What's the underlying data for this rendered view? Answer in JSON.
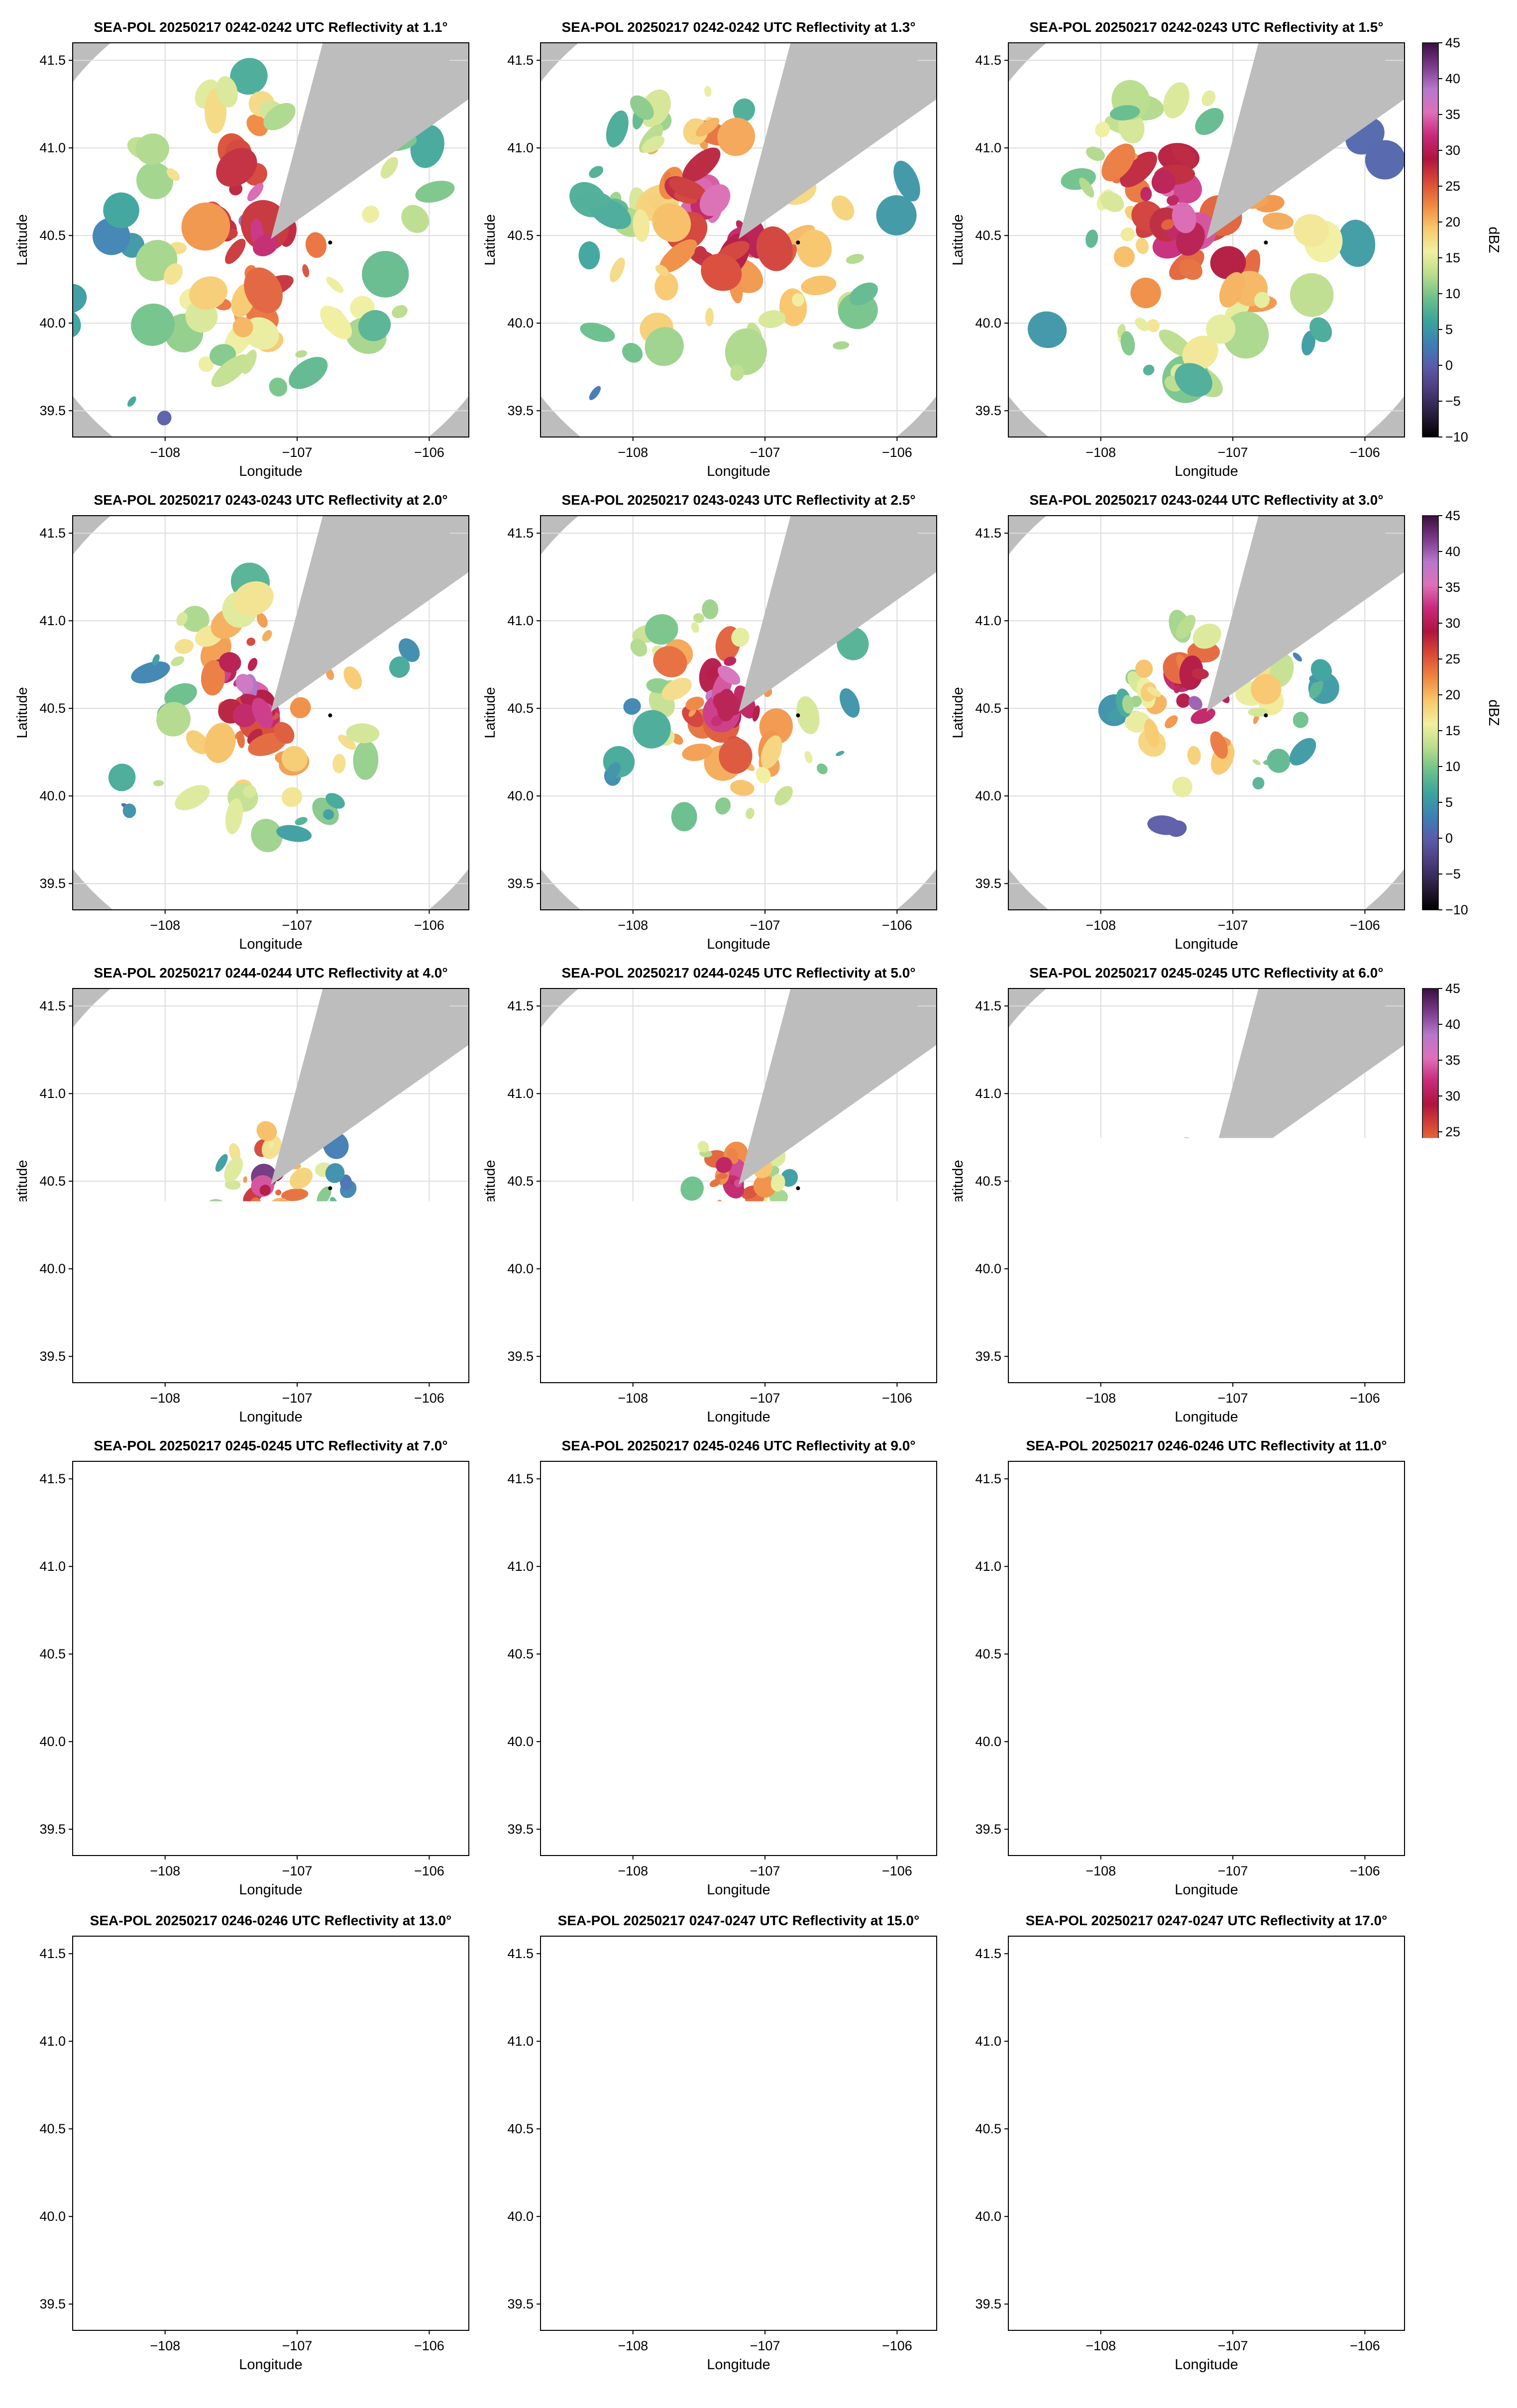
{
  "figure": {
    "colors": {
      "background_outside_range": "#bdbdbd",
      "inside_range": "#ffffff",
      "grid": "#dcdcdc",
      "axes_frame": "#000000"
    }
  },
  "chart_data": [
    {
      "type": "heatmap",
      "title": "SEA-POL 20250217 0242-0242 UTC Reflectivity at 1.1°",
      "xlabel": "Longitude",
      "ylabel": "Latitude",
      "xlim": [
        -108.7,
        -105.7
      ],
      "ylim": [
        39.35,
        41.6
      ],
      "x_ticks": [
        "−108",
        "−107",
        "−106"
      ],
      "y_ticks": [
        "39.5",
        "40.0",
        "40.5",
        "41.0",
        "41.5"
      ],
      "elevation_deg": 1.1,
      "echo_extent_deg": 1.25,
      "grid": true
    },
    {
      "type": "heatmap",
      "title": "SEA-POL 20250217 0242-0242 UTC Reflectivity at 1.3°",
      "xlabel": "Longitude",
      "ylabel": "Latitude",
      "xlim": [
        -108.7,
        -105.7
      ],
      "ylim": [
        39.35,
        41.6
      ],
      "x_ticks": [
        "−108",
        "−107",
        "−106"
      ],
      "y_ticks": [
        "39.5",
        "40.0",
        "40.5",
        "41.0",
        "41.5"
      ],
      "elevation_deg": 1.3,
      "echo_extent_deg": 1.2,
      "grid": true
    },
    {
      "type": "heatmap",
      "title": "SEA-POL 20250217 0242-0243 UTC Reflectivity at 1.5°",
      "xlabel": "Longitude",
      "ylabel": "Latitude",
      "xlim": [
        -108.7,
        -105.7
      ],
      "ylim": [
        39.35,
        41.6
      ],
      "x_ticks": [
        "−108",
        "−107",
        "−106"
      ],
      "y_ticks": [
        "39.5",
        "40.0",
        "40.5",
        "41.0",
        "41.5"
      ],
      "elevation_deg": 1.5,
      "echo_extent_deg": 1.2,
      "grid": true,
      "colorbar": true
    },
    {
      "type": "heatmap",
      "title": "SEA-POL 20250217 0243-0243 UTC Reflectivity at 2.0°",
      "xlabel": "Longitude",
      "ylabel": "Latitude",
      "xlim": [
        -108.7,
        -105.7
      ],
      "ylim": [
        39.35,
        41.6
      ],
      "x_ticks": [
        "−108",
        "−107",
        "−106"
      ],
      "y_ticks": [
        "39.5",
        "40.0",
        "40.5",
        "41.0",
        "41.5"
      ],
      "elevation_deg": 2.0,
      "echo_extent_deg": 1.0,
      "grid": true
    },
    {
      "type": "heatmap",
      "title": "SEA-POL 20250217 0243-0243 UTC Reflectivity at 2.5°",
      "xlabel": "Longitude",
      "ylabel": "Latitude",
      "xlim": [
        -108.7,
        -105.7
      ],
      "ylim": [
        39.35,
        41.6
      ],
      "x_ticks": [
        "−108",
        "−107",
        "−106"
      ],
      "y_ticks": [
        "39.5",
        "40.0",
        "40.5",
        "41.0",
        "41.5"
      ],
      "elevation_deg": 2.5,
      "echo_extent_deg": 0.9,
      "grid": true
    },
    {
      "type": "heatmap",
      "title": "SEA-POL 20250217 0243-0244 UTC Reflectivity at 3.0°",
      "xlabel": "Longitude",
      "ylabel": "Latitude",
      "xlim": [
        -108.7,
        -105.7
      ],
      "ylim": [
        39.35,
        41.6
      ],
      "x_ticks": [
        "−108",
        "−107",
        "−106"
      ],
      "y_ticks": [
        "39.5",
        "40.0",
        "40.5",
        "41.0",
        "41.5"
      ],
      "elevation_deg": 3.0,
      "echo_extent_deg": 0.75,
      "grid": true,
      "colorbar": true
    },
    {
      "type": "heatmap",
      "title": "SEA-POL 20250217 0244-0244 UTC Reflectivity at 4.0°",
      "xlabel": "Longitude",
      "ylabel": "Latitude",
      "xlim": [
        -108.7,
        -105.7
      ],
      "ylim": [
        39.35,
        41.6
      ],
      "x_ticks": [
        "−108",
        "−107",
        "−106"
      ],
      "y_ticks": [
        "39.5",
        "40.0",
        "40.5",
        "41.0",
        "41.5"
      ],
      "elevation_deg": 4.0,
      "echo_extent_deg": 0.5,
      "grid": true
    },
    {
      "type": "heatmap",
      "title": "SEA-POL 20250217 0244-0245 UTC Reflectivity at 5.0°",
      "xlabel": "Longitude",
      "ylabel": "Latitude",
      "xlim": [
        -108.7,
        -105.7
      ],
      "ylim": [
        39.35,
        41.6
      ],
      "x_ticks": [
        "−108",
        "−107",
        "−106"
      ],
      "y_ticks": [
        "39.5",
        "40.0",
        "40.5",
        "41.0",
        "41.5"
      ],
      "elevation_deg": 5.0,
      "echo_extent_deg": 0.4,
      "grid": true
    },
    {
      "type": "heatmap",
      "title": "SEA-POL 20250217 0245-0245 UTC Reflectivity at 6.0°",
      "xlabel": "Longitude",
      "ylabel": "Latitude",
      "xlim": [
        -108.7,
        -105.7
      ],
      "ylim": [
        39.35,
        41.6
      ],
      "x_ticks": [
        "−108",
        "−107",
        "−106"
      ],
      "y_ticks": [
        "39.5",
        "40.0",
        "40.5",
        "41.0",
        "41.5"
      ],
      "elevation_deg": 6.0,
      "echo_extent_deg": 0.33,
      "grid": true,
      "colorbar": true
    },
    {
      "type": "heatmap",
      "title": "SEA-POL 20250217 0245-0245 UTC Reflectivity at 7.0°",
      "xlabel": "Longitude",
      "ylabel": "Latitude",
      "xlim": [
        -108.7,
        -105.7
      ],
      "ylim": [
        39.35,
        41.6
      ],
      "x_ticks": [
        "−108",
        "−107",
        "−106"
      ],
      "y_ticks": [
        "39.5",
        "40.0",
        "40.5",
        "41.0",
        "41.5"
      ],
      "elevation_deg": 7.0,
      "echo_extent_deg": 0.27,
      "grid": true
    },
    {
      "type": "heatmap",
      "title": "SEA-POL 20250217 0245-0246 UTC Reflectivity at 9.0°",
      "xlabel": "Longitude",
      "ylabel": "Latitude",
      "xlim": [
        -108.7,
        -105.7
      ],
      "ylim": [
        39.35,
        41.6
      ],
      "x_ticks": [
        "−108",
        "−107",
        "−106"
      ],
      "y_ticks": [
        "39.5",
        "40.0",
        "40.5",
        "41.0",
        "41.5"
      ],
      "elevation_deg": 9.0,
      "echo_extent_deg": 0.22,
      "grid": true
    },
    {
      "type": "heatmap",
      "title": "SEA-POL 20250217 0246-0246 UTC Reflectivity at 11.0°",
      "xlabel": "Longitude",
      "ylabel": "Latitude",
      "xlim": [
        -108.7,
        -105.7
      ],
      "ylim": [
        39.35,
        41.6
      ],
      "x_ticks": [
        "−108",
        "−107",
        "−106"
      ],
      "y_ticks": [
        "39.5",
        "40.0",
        "40.5",
        "41.0",
        "41.5"
      ],
      "elevation_deg": 11.0,
      "echo_extent_deg": 0.19,
      "grid": true,
      "colorbar": true
    },
    {
      "type": "heatmap",
      "title": "SEA-POL 20250217 0246-0246 UTC Reflectivity at 13.0°",
      "xlabel": "Longitude",
      "ylabel": "Latitude",
      "xlim": [
        -108.7,
        -105.7
      ],
      "ylim": [
        39.35,
        41.6
      ],
      "x_ticks": [
        "−108",
        "−107",
        "−106"
      ],
      "y_ticks": [
        "39.5",
        "40.0",
        "40.5",
        "41.0",
        "41.5"
      ],
      "elevation_deg": 13.0,
      "echo_extent_deg": 0.14,
      "grid": true
    },
    {
      "type": "heatmap",
      "title": "SEA-POL 20250217 0247-0247 UTC Reflectivity at 15.0°",
      "xlabel": "Longitude",
      "ylabel": "Latitude",
      "xlim": [
        -108.7,
        -105.7
      ],
      "ylim": [
        39.35,
        41.6
      ],
      "x_ticks": [
        "−108",
        "−107",
        "−106"
      ],
      "y_ticks": [
        "39.5",
        "40.0",
        "40.5",
        "41.0",
        "41.5"
      ],
      "elevation_deg": 15.0,
      "echo_extent_deg": 0.12,
      "grid": true
    },
    {
      "type": "heatmap",
      "title": "SEA-POL 20250217 0247-0247 UTC Reflectivity at 17.0°",
      "xlabel": "Longitude",
      "ylabel": "Latitude",
      "xlim": [
        -108.7,
        -105.7
      ],
      "ylim": [
        39.35,
        41.6
      ],
      "x_ticks": [
        "−108",
        "−107",
        "−106"
      ],
      "y_ticks": [
        "39.5",
        "40.0",
        "40.5",
        "41.0",
        "41.5"
      ],
      "elevation_deg": 17.0,
      "echo_extent_deg": 0.1,
      "grid": true,
      "colorbar": true
    }
  ],
  "colorbar": {
    "label": "dBZ",
    "range": [
      -10,
      45
    ],
    "ticks": [
      "45",
      "40",
      "35",
      "30",
      "25",
      "20",
      "15",
      "10",
      "5",
      "0",
      "−5",
      "−10"
    ],
    "colors": [
      "#000000",
      "#2a1e3d",
      "#4a3a7a",
      "#5a59a8",
      "#3d7fb5",
      "#3aa39c",
      "#6cc08a",
      "#b9dd8b",
      "#f1f0a0",
      "#f8c86c",
      "#f08840",
      "#d94a35",
      "#b0133d",
      "#c8297a",
      "#dd70b8",
      "#b777cc",
      "#7a3a8a",
      "#3a0f3f"
    ]
  },
  "radar": {
    "center": [
      -107.2,
      40.48
    ],
    "marker": [
      -106.75,
      40.46
    ],
    "range_radius_deg": 1.45,
    "blocked_sectors_bearing_deg": [
      [
        15,
        55
      ]
    ]
  }
}
